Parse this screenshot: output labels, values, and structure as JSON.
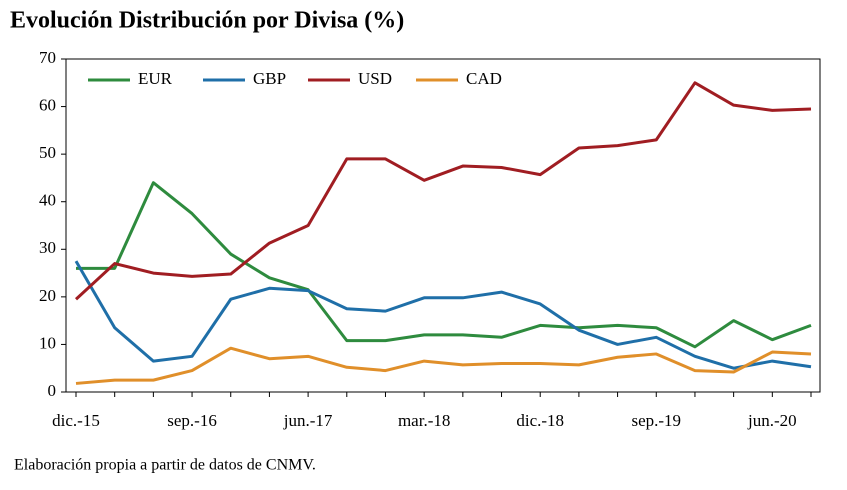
{
  "chart_data": {
    "type": "line",
    "title": "Evolución Distribución por Divisa (%)",
    "source": "Elaboración propia a partir de datos de CNMV.",
    "categories": [
      "dic.-15",
      null,
      null,
      "sep.-16",
      null,
      null,
      "jun.-17",
      null,
      null,
      "mar.-18",
      null,
      null,
      "dic.-18",
      null,
      null,
      "sep.-19",
      null,
      null,
      "jun.-20",
      null
    ],
    "series": [
      {
        "name": "EUR",
        "color": "#2e8b3e",
        "values": [
          26,
          26,
          44,
          37.5,
          29,
          24,
          21.5,
          10.8,
          10.8,
          12,
          12,
          11.5,
          14,
          13.5,
          14,
          13.5,
          9.5,
          15,
          11,
          14
        ]
      },
      {
        "name": "GBP",
        "color": "#1f6fa8",
        "values": [
          27.5,
          13.5,
          6.5,
          7.5,
          19.5,
          21.8,
          21.3,
          17.5,
          17,
          19.8,
          19.8,
          21,
          18.5,
          13,
          10,
          11.5,
          7.5,
          5,
          6.5,
          5.3
        ]
      },
      {
        "name": "USD",
        "color": "#a01d22",
        "values": [
          19.5,
          27,
          25,
          24.3,
          24.8,
          31.3,
          35,
          49,
          49,
          44.5,
          47.5,
          47.2,
          45.7,
          51.3,
          51.8,
          53,
          65,
          60.3,
          59.2,
          59.5
        ]
      },
      {
        "name": "CAD",
        "color": "#e08f2a",
        "values": [
          1.8,
          2.5,
          2.5,
          4.5,
          9.2,
          7,
          7.5,
          5.2,
          4.5,
          6.5,
          5.7,
          6,
          6,
          5.7,
          7.3,
          8,
          4.5,
          4.2,
          8.4,
          8
        ]
      }
    ],
    "ylim": [
      0,
      70
    ],
    "yticks": [
      0,
      10,
      20,
      30,
      40,
      50,
      60,
      70
    ],
    "grid": false,
    "legend": "top-left"
  }
}
